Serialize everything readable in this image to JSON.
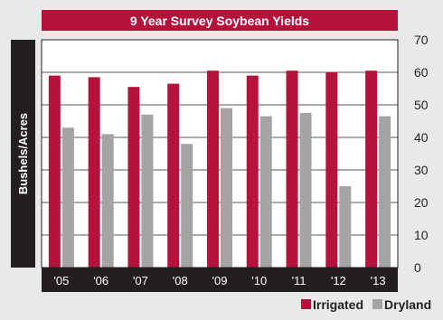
{
  "chart_data": {
    "type": "bar",
    "title": "9 Year Survey Soybean Yields",
    "ylabel": "Bushels/Acres",
    "xlabel": "",
    "categories": [
      "'05",
      "'06",
      "'07",
      "'08",
      "'09",
      "'10",
      "'11",
      "'12",
      "'13"
    ],
    "series": [
      {
        "name": "Irrigated",
        "color": "#b5123c",
        "values": [
          59,
          58.5,
          55.5,
          56.5,
          60.5,
          59,
          60.5,
          60,
          60.5
        ]
      },
      {
        "name": "Dryland",
        "color": "#a4a4a4",
        "values": [
          43,
          41,
          47,
          38,
          49,
          46.5,
          47.5,
          25,
          46.5
        ]
      }
    ],
    "ylim": [
      0,
      70
    ],
    "yticks": [
      0,
      10,
      20,
      30,
      40,
      50,
      60,
      70
    ],
    "grid": true,
    "legend_position": "bottom-right",
    "colors": {
      "background": "#e9e9e9",
      "plot_background": "#ffffff",
      "band": "#231f20",
      "title_bar": "#b5123c",
      "grid": "#231f20"
    }
  }
}
